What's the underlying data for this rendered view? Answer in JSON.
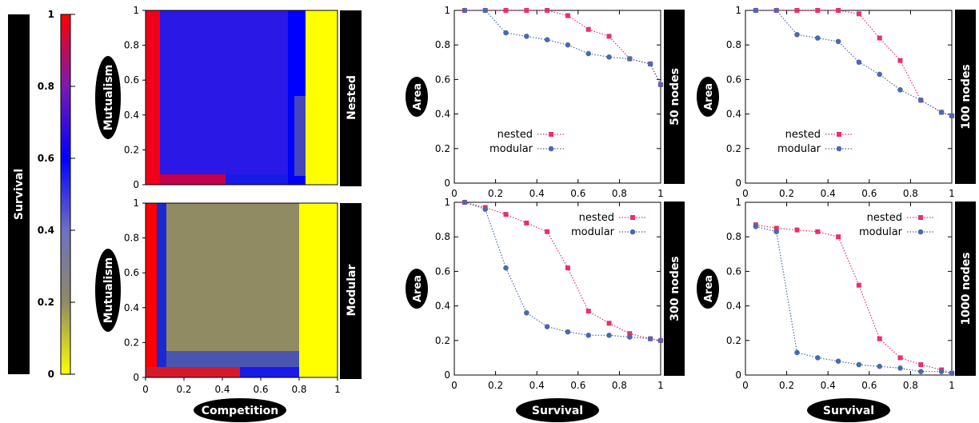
{
  "colorbar": {
    "label": "Survival",
    "ticks": [
      "0",
      "0.2",
      "0.4",
      "0.6",
      "0.8",
      "1"
    ],
    "tick_values": [
      0,
      0.2,
      0.4,
      0.6,
      0.8,
      1
    ],
    "palette": [
      "#ffff00",
      "#8e8a66",
      "#0000ff",
      "#ff0000"
    ]
  },
  "heatmap_row_labels": [
    "Nested",
    "Modular"
  ],
  "heatmap_ylabel": "Mutualism",
  "heatmap_xlabel": "Competition",
  "heatmap_ticks": [
    "0",
    "0.2",
    "0.4",
    "0.6",
    "0.8",
    "1"
  ],
  "line_row_labels": [
    "50 nodes",
    "100 nodes",
    "300 nodes",
    "1000 nodes"
  ],
  "line_ylabel": "Area",
  "line_xlabel": "Survival",
  "line_ticks": [
    "0",
    "0.2",
    "0.4",
    "0.6",
    "0.8",
    "1"
  ],
  "colors": {
    "nested": "#e8306a",
    "modular": "#4a6aae",
    "tag_bg": "#000000",
    "tag_text": "#ffffff"
  },
  "chart_data": [
    {
      "type": "heatmap",
      "panel": "nested",
      "row_label": "Nested",
      "xlabel": "Competition",
      "ylabel": "Mutualism",
      "xlim": [
        0,
        1
      ],
      "ylim": [
        0,
        1
      ],
      "z_range": [
        0,
        1
      ],
      "description_values": {
        "competition_threshold_survival_zero": 0.82,
        "low_competition_survival": 1.0,
        "interior_survival": 0.6
      }
    },
    {
      "type": "heatmap",
      "panel": "modular",
      "row_label": "Modular",
      "xlabel": "Competition",
      "ylabel": "Mutualism",
      "xlim": [
        0,
        1
      ],
      "ylim": [
        0,
        1
      ],
      "z_range": [
        0,
        1
      ],
      "description_values": {
        "competition_threshold_survival_zero": 0.84,
        "low_competition_survival": 1.0,
        "interior_survival": 0.25
      }
    },
    {
      "type": "line",
      "panel_label": "50 nodes",
      "xlabel": "",
      "ylabel": "Area",
      "xlim": [
        0,
        1
      ],
      "ylim": [
        0,
        1
      ],
      "legend": "center-left",
      "series": [
        {
          "name": "nested",
          "x": [
            0.05,
            0.15,
            0.25,
            0.35,
            0.45,
            0.55,
            0.65,
            0.75,
            0.85,
            0.95,
            1.0
          ],
          "y": [
            1.0,
            1.0,
            1.0,
            1.0,
            1.0,
            0.97,
            0.89,
            0.85,
            0.72,
            0.69,
            0.57
          ]
        },
        {
          "name": "modular",
          "x": [
            0.05,
            0.15,
            0.25,
            0.35,
            0.45,
            0.55,
            0.65,
            0.75,
            0.85,
            0.95,
            1.0
          ],
          "y": [
            1.0,
            1.0,
            0.87,
            0.85,
            0.83,
            0.8,
            0.75,
            0.73,
            0.72,
            0.69,
            0.57
          ]
        }
      ]
    },
    {
      "type": "line",
      "panel_label": "100 nodes",
      "xlabel": "",
      "ylabel": "Area",
      "xlim": [
        0,
        1
      ],
      "ylim": [
        0,
        1
      ],
      "legend": "center-left",
      "series": [
        {
          "name": "nested",
          "x": [
            0.05,
            0.15,
            0.25,
            0.35,
            0.45,
            0.55,
            0.65,
            0.75,
            0.85,
            0.95,
            1.0
          ],
          "y": [
            1.0,
            1.0,
            1.0,
            1.0,
            1.0,
            0.98,
            0.84,
            0.71,
            0.48,
            0.41,
            0.39
          ]
        },
        {
          "name": "modular",
          "x": [
            0.05,
            0.15,
            0.25,
            0.35,
            0.45,
            0.55,
            0.65,
            0.75,
            0.85,
            0.95,
            1.0
          ],
          "y": [
            1.0,
            1.0,
            0.86,
            0.84,
            0.82,
            0.7,
            0.63,
            0.54,
            0.48,
            0.41,
            0.39
          ]
        }
      ]
    },
    {
      "type": "line",
      "panel_label": "300 nodes",
      "xlabel": "Survival",
      "ylabel": "Area",
      "xlim": [
        0,
        1
      ],
      "ylim": [
        0,
        1
      ],
      "legend": "top-right",
      "series": [
        {
          "name": "nested",
          "x": [
            0.05,
            0.15,
            0.25,
            0.35,
            0.45,
            0.55,
            0.65,
            0.75,
            0.85,
            0.95,
            1.0
          ],
          "y": [
            1.0,
            0.97,
            0.93,
            0.88,
            0.83,
            0.62,
            0.37,
            0.3,
            0.24,
            0.21,
            0.2
          ]
        },
        {
          "name": "modular",
          "x": [
            0.05,
            0.15,
            0.25,
            0.35,
            0.45,
            0.55,
            0.65,
            0.75,
            0.85,
            0.95,
            1.0
          ],
          "y": [
            1.0,
            0.96,
            0.62,
            0.36,
            0.28,
            0.25,
            0.23,
            0.23,
            0.22,
            0.21,
            0.2
          ]
        }
      ]
    },
    {
      "type": "line",
      "panel_label": "1000 nodes",
      "xlabel": "Survival",
      "ylabel": "Area",
      "xlim": [
        0,
        1
      ],
      "ylim": [
        0,
        1
      ],
      "legend": "top-right",
      "series": [
        {
          "name": "nested",
          "x": [
            0.05,
            0.15,
            0.25,
            0.35,
            0.45,
            0.55,
            0.65,
            0.75,
            0.85,
            0.95,
            1.0
          ],
          "y": [
            0.87,
            0.85,
            0.84,
            0.83,
            0.8,
            0.52,
            0.21,
            0.1,
            0.06,
            0.03,
            0.01
          ]
        },
        {
          "name": "modular",
          "x": [
            0.05,
            0.15,
            0.25,
            0.35,
            0.45,
            0.55,
            0.65,
            0.75,
            0.85,
            0.95,
            1.0
          ],
          "y": [
            0.86,
            0.83,
            0.13,
            0.1,
            0.08,
            0.06,
            0.05,
            0.04,
            0.02,
            0.02,
            0.01
          ]
        }
      ]
    }
  ]
}
